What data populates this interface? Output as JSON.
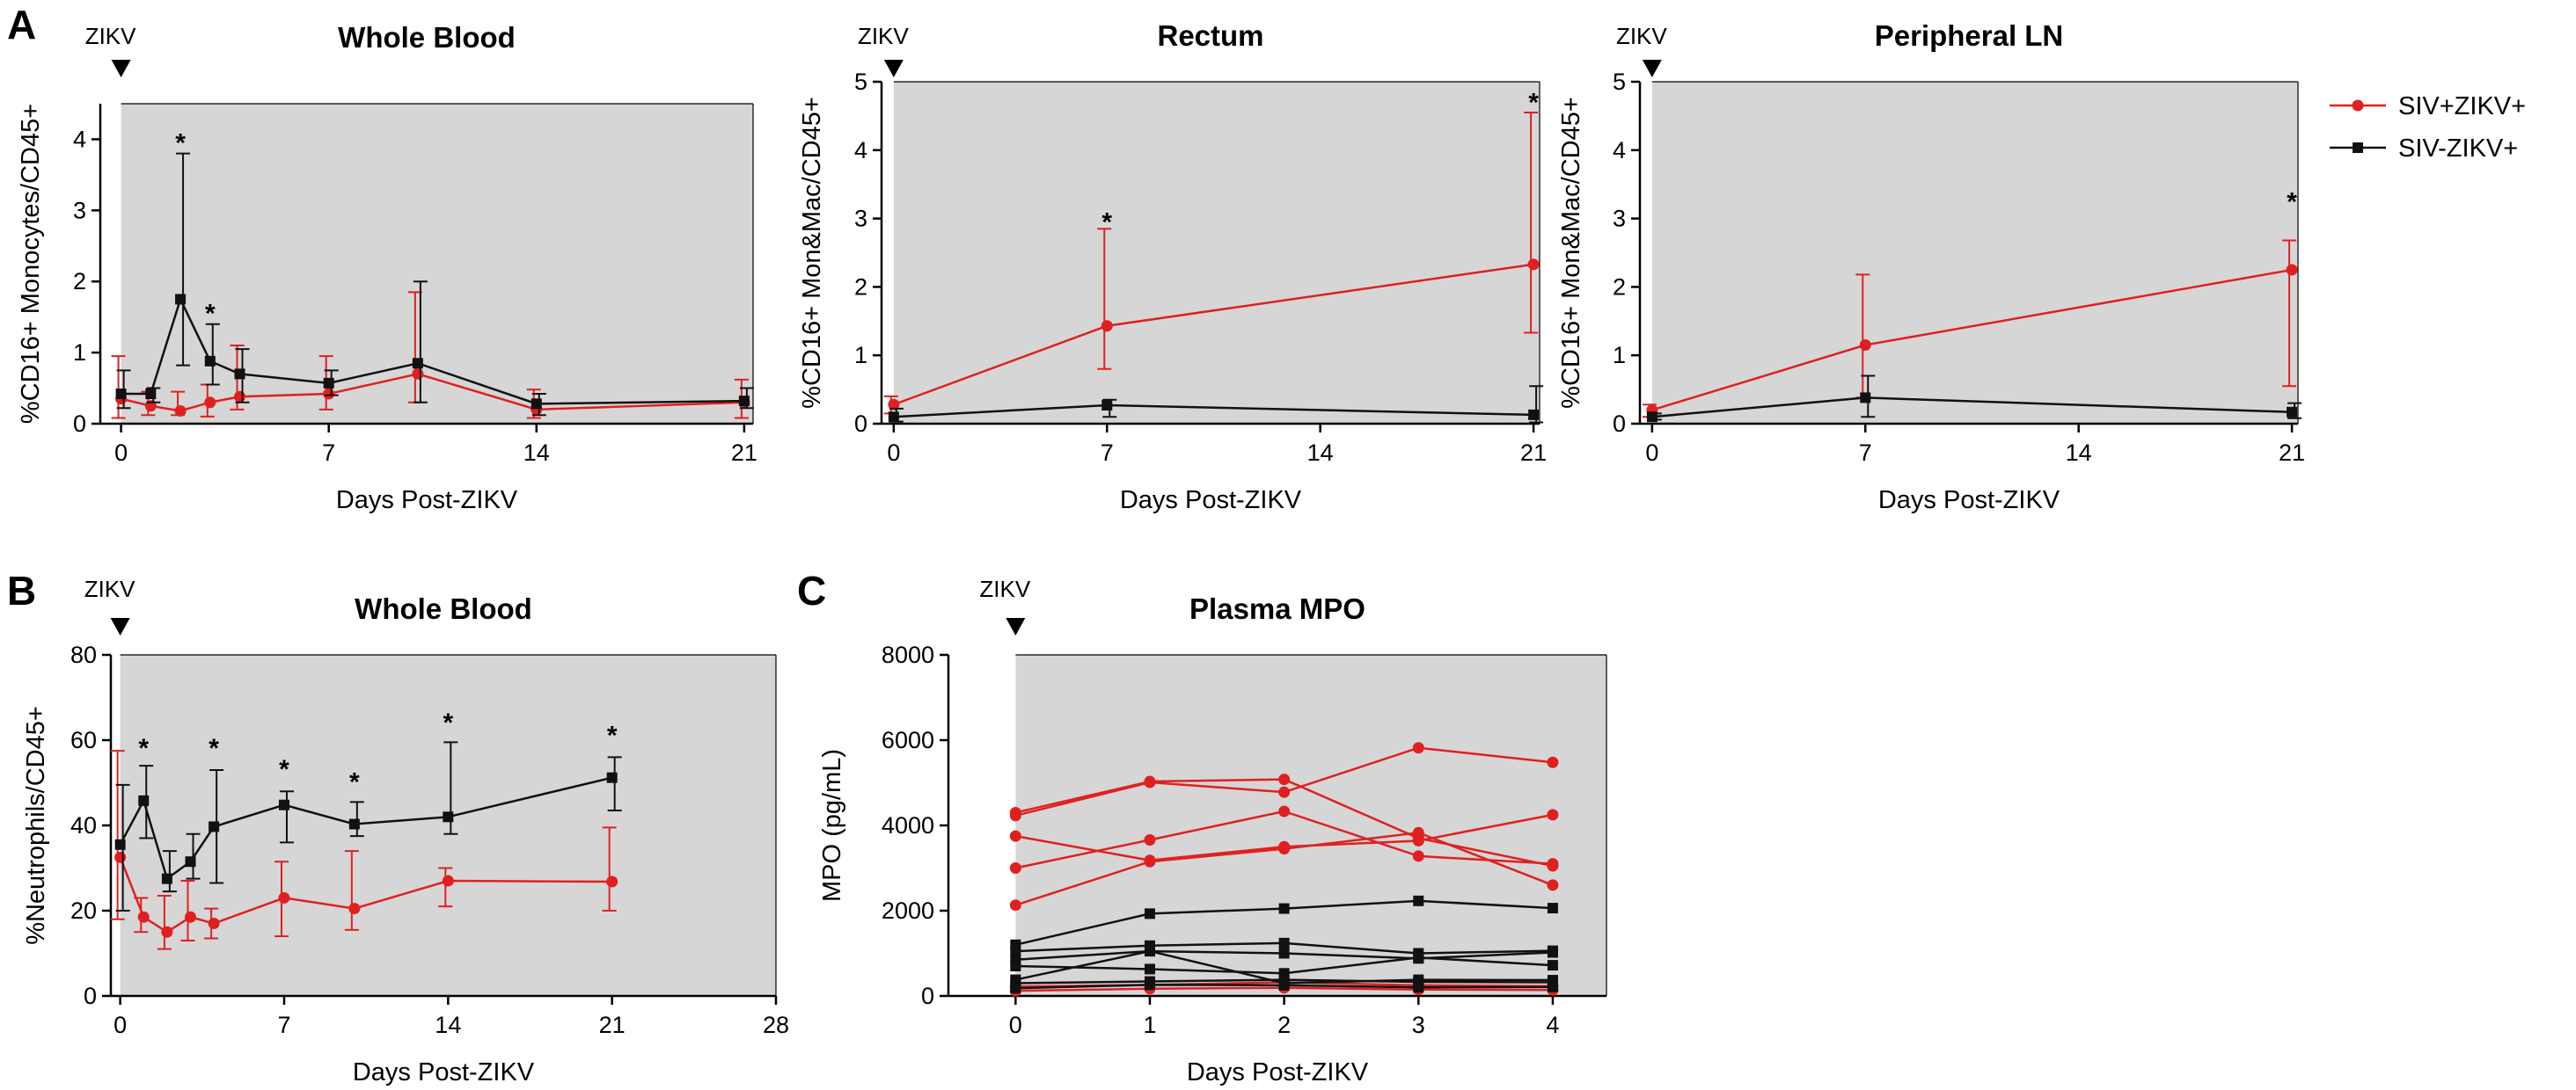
{
  "figure": {
    "legend": [
      {
        "label": "SIV+ZIKV+",
        "color": "#e02020",
        "marker": "circle"
      },
      {
        "label": "SIV-ZIKV+",
        "color": "#111111",
        "marker": "square"
      }
    ],
    "zikv_label": "ZIKV",
    "star": "*"
  },
  "chart_data": [
    {
      "panel": "A",
      "type": "line",
      "title": "Whole Blood",
      "xlabel": "Days Post-ZIKV",
      "ylabel": "%CD16+ Monocytes/CD45+",
      "xlim": [
        -0.7,
        21.3
      ],
      "ylim": [
        0,
        4.5
      ],
      "xticks": [
        0,
        7,
        14,
        21
      ],
      "yticks": [
        0,
        1,
        2,
        3,
        4
      ],
      "series": [
        {
          "name": "SIV+ZIKV+",
          "color": "#e02020",
          "marker": "circle",
          "x": [
            0,
            1,
            2,
            3,
            4,
            7,
            10,
            14,
            21
          ],
          "y": [
            0.35,
            0.25,
            0.18,
            0.3,
            0.38,
            0.42,
            0.7,
            0.2,
            0.3
          ],
          "err_low": [
            0.08,
            0.12,
            0.12,
            0.1,
            0.2,
            0.2,
            0.3,
            0.08,
            0.08
          ],
          "err_high": [
            0.95,
            0.45,
            0.45,
            0.55,
            1.1,
            0.95,
            1.85,
            0.48,
            0.62
          ]
        },
        {
          "name": "SIV-ZIKV+",
          "color": "#111111",
          "marker": "square",
          "x": [
            0,
            1,
            2,
            3,
            4,
            7,
            10,
            14,
            21
          ],
          "y": [
            0.42,
            0.42,
            1.75,
            0.88,
            0.7,
            0.57,
            0.85,
            0.28,
            0.32
          ],
          "err_low": [
            0.22,
            0.3,
            0.82,
            0.55,
            0.3,
            0.4,
            0.3,
            0.12,
            0.22
          ],
          "err_high": [
            0.75,
            0.5,
            3.8,
            1.4,
            1.05,
            0.75,
            2.0,
            0.42,
            0.5
          ]
        }
      ],
      "annotations": [
        {
          "x": 2,
          "y": 4.0,
          "text": "*"
        },
        {
          "x": 3,
          "y": 1.6,
          "text": "*"
        }
      ]
    },
    {
      "panel": "A",
      "type": "line",
      "title": "Rectum",
      "xlabel": "Days Post-ZIKV",
      "ylabel": "%CD16+ Mon&Mac/CD45+",
      "xlim": [
        -0.4,
        21.2
      ],
      "ylim": [
        0,
        5
      ],
      "xticks": [
        0,
        7,
        14,
        21
      ],
      "yticks": [
        0,
        1,
        2,
        3,
        4,
        5
      ],
      "series": [
        {
          "name": "SIV+ZIKV+",
          "color": "#e02020",
          "marker": "circle",
          "x": [
            0,
            7,
            21
          ],
          "y": [
            0.28,
            1.43,
            2.33
          ],
          "err_low": [
            0.15,
            0.8,
            1.33
          ],
          "err_high": [
            0.4,
            2.85,
            4.55
          ]
        },
        {
          "name": "SIV-ZIKV+",
          "color": "#111111",
          "marker": "square",
          "x": [
            0,
            7,
            21
          ],
          "y": [
            0.1,
            0.27,
            0.13
          ],
          "err_low": [
            0.03,
            0.1,
            0.02
          ],
          "err_high": [
            0.22,
            0.35,
            0.55
          ]
        }
      ],
      "annotations": [
        {
          "x": 7,
          "y": 3.0,
          "text": "*"
        },
        {
          "x": 21,
          "y": 4.75,
          "text": "*"
        }
      ]
    },
    {
      "panel": "A",
      "type": "line",
      "title": "Peripheral LN",
      "xlabel": "Days Post-ZIKV",
      "ylabel": "%CD16+ Mon&Mac/CD45+",
      "xlim": [
        -0.4,
        21.2
      ],
      "ylim": [
        0,
        5
      ],
      "xticks": [
        0,
        7,
        14,
        21
      ],
      "yticks": [
        0,
        1,
        2,
        3,
        4,
        5
      ],
      "series": [
        {
          "name": "SIV+ZIKV+",
          "color": "#e02020",
          "marker": "circle",
          "x": [
            0,
            7,
            21
          ],
          "y": [
            0.2,
            1.15,
            2.25
          ],
          "err_low": [
            0.1,
            0.38,
            0.55
          ],
          "err_high": [
            0.28,
            2.18,
            2.68
          ]
        },
        {
          "name": "SIV-ZIKV+",
          "color": "#111111",
          "marker": "square",
          "x": [
            0,
            7,
            21
          ],
          "y": [
            0.1,
            0.38,
            0.17
          ],
          "err_low": [
            0.06,
            0.1,
            0.08
          ],
          "err_high": [
            0.15,
            0.7,
            0.3
          ]
        }
      ],
      "annotations": [
        {
          "x": 21,
          "y": 3.3,
          "text": "*"
        }
      ]
    },
    {
      "panel": "B",
      "type": "line",
      "title": "Whole Blood",
      "xlabel": "Days Post-ZIKV",
      "ylabel": "%Neutrophils/CD45+",
      "xlim": [
        -0.4,
        28
      ],
      "ylim": [
        0,
        80
      ],
      "xticks": [
        0,
        7,
        14,
        21,
        28
      ],
      "yticks": [
        0,
        20,
        40,
        60,
        80
      ],
      "series": [
        {
          "name": "SIV+ZIKV+",
          "color": "#e02020",
          "marker": "circle",
          "x": [
            0,
            1,
            2,
            3,
            4,
            7,
            10,
            14,
            21
          ],
          "y": [
            32.5,
            18.5,
            15,
            18.5,
            17,
            23,
            20.5,
            27,
            26.8
          ],
          "err_low": [
            18,
            15,
            11,
            13,
            13.5,
            14,
            15.5,
            21,
            20
          ],
          "err_high": [
            57.5,
            23,
            23.5,
            27,
            20.5,
            31.5,
            34,
            30,
            39.5
          ]
        },
        {
          "name": "SIV-ZIKV+",
          "color": "#111111",
          "marker": "square",
          "x": [
            0,
            1,
            2,
            3,
            4,
            7,
            10,
            14,
            21
          ],
          "y": [
            35.5,
            45.8,
            27.5,
            31.5,
            39.7,
            44.8,
            40.3,
            42,
            51.2
          ],
          "err_low": [
            20,
            37,
            24.5,
            27.5,
            26.5,
            36,
            37.5,
            38,
            43.5
          ],
          "err_high": [
            49.5,
            54,
            34,
            38,
            53,
            48,
            45.5,
            59.5,
            56
          ]
        }
      ],
      "annotations": [
        {
          "x": 1,
          "y": 59,
          "text": "*"
        },
        {
          "x": 4,
          "y": 59,
          "text": "*"
        },
        {
          "x": 7,
          "y": 54,
          "text": "*"
        },
        {
          "x": 10,
          "y": 51,
          "text": "*"
        },
        {
          "x": 14,
          "y": 65,
          "text": "*"
        },
        {
          "x": 21,
          "y": 62,
          "text": "*"
        }
      ]
    },
    {
      "panel": "C",
      "type": "line",
      "title": "Plasma MPO",
      "xlabel": "Days Post-ZIKV",
      "ylabel": "MPO (pg/mL)",
      "xlim": [
        -0.5,
        4.4
      ],
      "ylim": [
        0,
        8000
      ],
      "xticks": [
        0,
        1,
        2,
        3,
        4
      ],
      "yticks": [
        0,
        2000,
        4000,
        6000,
        8000
      ],
      "shade_from": 0,
      "series": [
        {
          "name": "SIV+ZIKV+ #1",
          "group": "SIV+ZIKV+",
          "color": "#e02020",
          "marker": "circle",
          "x": [
            0,
            1,
            2,
            3,
            4
          ],
          "y": [
            4300,
            5030,
            5080,
            3700,
            3050
          ]
        },
        {
          "name": "SIV+ZIKV+ #2",
          "group": "SIV+ZIKV+",
          "color": "#e02020",
          "marker": "circle",
          "x": [
            0,
            1,
            2,
            3,
            4
          ],
          "y": [
            4230,
            5010,
            4780,
            5820,
            5480
          ]
        },
        {
          "name": "SIV+ZIKV+ #3",
          "group": "SIV+ZIKV+",
          "color": "#e02020",
          "marker": "circle",
          "x": [
            0,
            1,
            2,
            3,
            4
          ],
          "y": [
            3750,
            3180,
            3500,
            3640,
            4250
          ]
        },
        {
          "name": "SIV+ZIKV+ #4",
          "group": "SIV+ZIKV+",
          "color": "#e02020",
          "marker": "circle",
          "x": [
            0,
            1,
            2,
            3,
            4
          ],
          "y": [
            3000,
            3660,
            4330,
            3280,
            3100
          ]
        },
        {
          "name": "SIV+ZIKV+ #5",
          "group": "SIV+ZIKV+",
          "color": "#e02020",
          "marker": "circle",
          "x": [
            0,
            1,
            2,
            3,
            4
          ],
          "y": [
            2130,
            3150,
            3450,
            3830,
            2600
          ]
        },
        {
          "name": "SIV+ZIKV+ #6",
          "group": "SIV+ZIKV+",
          "color": "#e02020",
          "marker": "circle",
          "x": [
            0,
            1,
            2,
            3,
            4
          ],
          "y": [
            220,
            260,
            320,
            250,
            230
          ]
        },
        {
          "name": "SIV+ZIKV+ #7",
          "group": "SIV+ZIKV+",
          "color": "#e02020",
          "marker": "circle",
          "x": [
            0,
            1,
            2,
            3,
            4
          ],
          "y": [
            120,
            170,
            190,
            150,
            140
          ]
        },
        {
          "name": "SIV-ZIKV+ #1",
          "group": "SIV-ZIKV+",
          "color": "#111111",
          "marker": "square",
          "x": [
            0,
            1,
            2,
            3,
            4
          ],
          "y": [
            1200,
            1930,
            2050,
            2230,
            2060
          ]
        },
        {
          "name": "SIV-ZIKV+ #2",
          "group": "SIV-ZIKV+",
          "color": "#111111",
          "marker": "square",
          "x": [
            0,
            1,
            2,
            3,
            4
          ],
          "y": [
            1050,
            1180,
            1240,
            1000,
            1060
          ]
        },
        {
          "name": "SIV-ZIKV+ #3",
          "group": "SIV-ZIKV+",
          "color": "#111111",
          "marker": "square",
          "x": [
            0,
            1,
            2,
            3,
            4
          ],
          "y": [
            850,
            1050,
            1000,
            880,
            1020
          ]
        },
        {
          "name": "SIV-ZIKV+ #4",
          "group": "SIV-ZIKV+",
          "color": "#111111",
          "marker": "square",
          "x": [
            0,
            1,
            2,
            3,
            4
          ],
          "y": [
            700,
            630,
            530,
            900,
            720
          ]
        },
        {
          "name": "SIV-ZIKV+ #5",
          "group": "SIV-ZIKV+",
          "color": "#111111",
          "marker": "square",
          "x": [
            0,
            1,
            2,
            3,
            4
          ],
          "y": [
            380,
            1050,
            300,
            380,
            370
          ]
        },
        {
          "name": "SIV-ZIKV+ #6",
          "group": "SIV-ZIKV+",
          "color": "#111111",
          "marker": "square",
          "x": [
            0,
            1,
            2,
            3,
            4
          ],
          "y": [
            300,
            340,
            380,
            330,
            320
          ]
        },
        {
          "name": "SIV-ZIKV+ #7",
          "group": "SIV-ZIKV+",
          "color": "#111111",
          "marker": "square",
          "x": [
            0,
            1,
            2,
            3,
            4
          ],
          "y": [
            180,
            260,
            250,
            200,
            210
          ]
        }
      ],
      "annotations": []
    }
  ]
}
